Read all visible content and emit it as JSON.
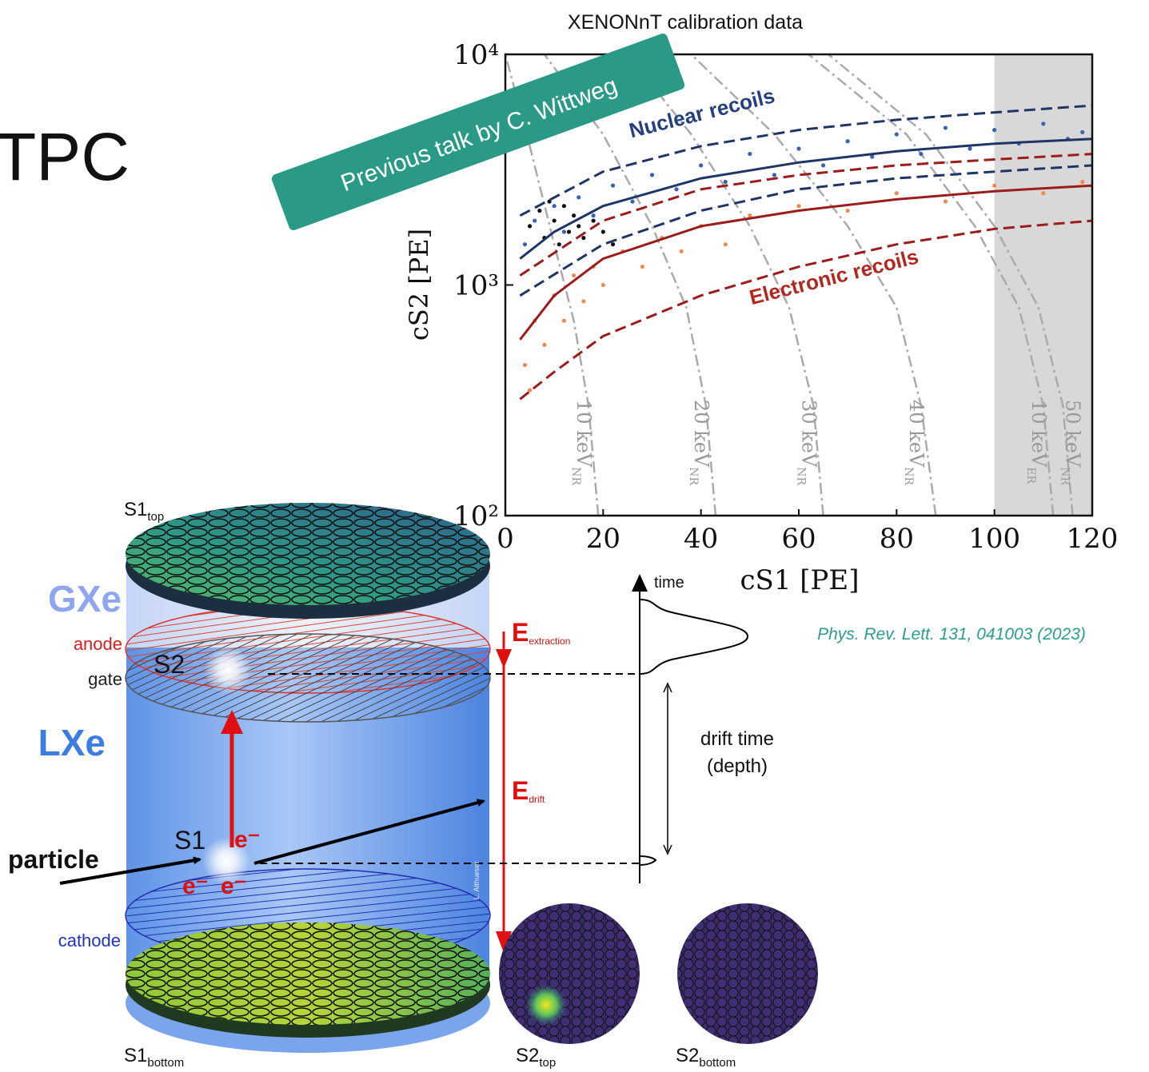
{
  "slide": {
    "title_fragment": "TPC",
    "banner": "Previous talk by C. Wittweg",
    "reference": "Phys. Rev. Lett. 131, 041003 (2023)"
  },
  "chart_data": {
    "type": "scatter",
    "title": "XENONnT calibration data",
    "x_label": "cS1 [PE]",
    "y_label": "cS2 [PE]",
    "xlim": [
      0,
      120
    ],
    "ylim": [
      100,
      10000
    ],
    "log_y": true,
    "xticks": [
      0,
      20,
      40,
      60,
      80,
      100,
      120
    ],
    "yticks": [
      {
        "value": 100,
        "label": "10²"
      },
      {
        "value": 1000,
        "label": "10³"
      },
      {
        "value": 10000,
        "label": "10⁴"
      }
    ],
    "shade_x": [
      100,
      120
    ],
    "shade_color": "#d8d8d8",
    "points": [
      {
        "color": "#3b62b0",
        "x": [
          4,
          6,
          8,
          10,
          12,
          15,
          18,
          22,
          26,
          30,
          35,
          40,
          45,
          50,
          55,
          60,
          65,
          70,
          75,
          80,
          85,
          90,
          95,
          100,
          105,
          110,
          115,
          118
        ],
        "values": [
          1500,
          1900,
          1600,
          2200,
          1700,
          2400,
          2000,
          2700,
          2300,
          3000,
          2600,
          3300,
          2800,
          3700,
          3000,
          3900,
          3300,
          4200,
          3600,
          4500,
          3700,
          4800,
          3900,
          4700,
          4100,
          5000,
          4300,
          4600
        ]
      },
      {
        "color": "#ee8a4f",
        "x": [
          4,
          5,
          6,
          8,
          10,
          12,
          14,
          16,
          18,
          20,
          24,
          28,
          32,
          36,
          40,
          45,
          50,
          60,
          70,
          80,
          90,
          100,
          110,
          118
        ],
        "values": [
          450,
          350,
          700,
          550,
          900,
          700,
          1100,
          850,
          1200,
          1000,
          1400,
          1200,
          1600,
          1400,
          1800,
          1500,
          2000,
          2200,
          2100,
          2500,
          2300,
          2700,
          2500,
          2800
        ]
      },
      {
        "color": "#111111",
        "x": [
          5,
          7,
          8,
          9,
          10,
          11,
          12,
          13,
          14,
          15,
          16,
          18,
          20,
          22
        ],
        "values": [
          1800,
          2100,
          1600,
          2300,
          1900,
          1500,
          2200,
          1700,
          2000,
          1800,
          1600,
          1900,
          1700,
          1500
        ]
      }
    ],
    "curves": [
      {
        "style": "dashed",
        "color": "#1f3566",
        "x": [
          3,
          20,
          40,
          60,
          80,
          100,
          120
        ],
        "values": [
          2000,
          3100,
          4000,
          4700,
          5200,
          5600,
          6000
        ]
      },
      {
        "style": "solid",
        "color": "#1f3566",
        "x": [
          3,
          10,
          20,
          40,
          60,
          80,
          100,
          120
        ],
        "values": [
          1300,
          1700,
          2200,
          2900,
          3400,
          3800,
          4100,
          4300
        ]
      },
      {
        "style": "dashed",
        "color": "#1f3566",
        "x": [
          3,
          20,
          40,
          60,
          80,
          100,
          120
        ],
        "values": [
          900,
          1500,
          2100,
          2600,
          2900,
          3100,
          3300
        ]
      },
      {
        "style": "dashed",
        "color": "#9b1c1c",
        "x": [
          3,
          20,
          40,
          60,
          80,
          100,
          120
        ],
        "values": [
          1100,
          1900,
          2600,
          3000,
          3300,
          3500,
          3700
        ]
      },
      {
        "style": "solid",
        "color": "#9b1c1c",
        "x": [
          3,
          10,
          20,
          40,
          60,
          80,
          100,
          120
        ],
        "values": [
          580,
          900,
          1300,
          1800,
          2100,
          2350,
          2550,
          2700
        ]
      },
      {
        "style": "dashed",
        "color": "#9b1c1c",
        "x": [
          3,
          10,
          20,
          40,
          60,
          80,
          100,
          120
        ],
        "values": [
          320,
          420,
          600,
          900,
          1200,
          1500,
          1750,
          1900
        ]
      }
    ],
    "contours": [
      {
        "label": {
          "text": "10 keV",
          "sub": "NR"
        },
        "color": "#aaaaaa",
        "x": [
          19,
          17,
          14,
          10,
          5,
          0
        ],
        "values": [
          100,
          300,
          700,
          1500,
          4000,
          10000
        ]
      },
      {
        "label": {
          "text": "20 keV",
          "sub": "NR"
        },
        "color": "#aaaaaa",
        "x": [
          43,
          41,
          37,
          30,
          20,
          8
        ],
        "values": [
          100,
          300,
          800,
          1800,
          4500,
          10000
        ]
      },
      {
        "label": {
          "text": "30 keV",
          "sub": "NR"
        },
        "color": "#aaaaaa",
        "x": [
          65,
          63,
          58,
          50,
          38,
          25
        ],
        "values": [
          100,
          300,
          800,
          1800,
          4500,
          10000
        ]
      },
      {
        "label": {
          "text": "40 keV",
          "sub": "NR"
        },
        "color": "#aaaaaa",
        "x": [
          88,
          85,
          80,
          70,
          55,
          38
        ],
        "values": [
          100,
          300,
          800,
          1800,
          4500,
          10000
        ]
      },
      {
        "label": {
          "text": "10 keV",
          "sub": "ER"
        },
        "color": "#aaaaaa",
        "x": [
          112,
          110,
          105,
          96,
          82,
          62
        ],
        "values": [
          100,
          300,
          800,
          1800,
          4500,
          10000
        ]
      },
      {
        "label": {
          "text": "50 keV",
          "sub": "NR"
        },
        "color": "#aaaaaa",
        "x": [
          116,
          114,
          109,
          100,
          86,
          66
        ],
        "values": [
          100,
          300,
          800,
          1800,
          4500,
          10000
        ]
      }
    ],
    "annotations": [
      {
        "text": "Nuclear recoils",
        "color": "#26407e"
      },
      {
        "text": "Electronic recoils",
        "color": "#b2271f"
      }
    ]
  },
  "diagram": {
    "gxe": "GXe",
    "lxe": "LXe",
    "anode": "anode",
    "gate": "gate",
    "cathode": "cathode",
    "particle": "particle",
    "s1_top": {
      "text": "S1",
      "sub": "top"
    },
    "s1_bottom": {
      "text": "S1",
      "sub": "bottom"
    },
    "s2": "S2",
    "s1": "S1",
    "electron": "e⁻",
    "e_extraction": {
      "text": "E",
      "sub": "extraction"
    },
    "e_drift": {
      "text": "E",
      "sub": "drift"
    },
    "time": "time",
    "drift_time": "drift time",
    "depth": "(depth)",
    "credit": "L. Althueser",
    "s2_top": {
      "text": "S2",
      "sub": "top"
    },
    "s2_bottom": {
      "text": "S2",
      "sub": "bottom"
    }
  }
}
